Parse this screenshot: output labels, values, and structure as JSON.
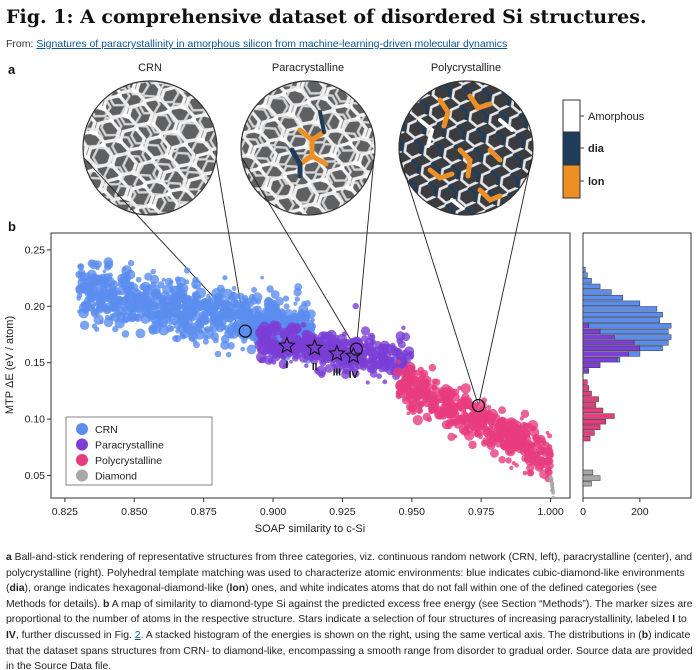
{
  "figure": {
    "title": "Fig. 1: A comprehensive dataset of disordered Si structures.",
    "from_prefix": "From: ",
    "source_link": "Signatures of paracrystallinity in amorphous silicon from machine-learning-driven molecular dynamics",
    "panel_a": "a",
    "panel_b": "b"
  },
  "structures": {
    "crn_label": "CRN",
    "para_label": "Paracrystalline",
    "poly_label": "Polycrystalline"
  },
  "colorbar": {
    "items": [
      {
        "label": "Amorphous",
        "color": "#ffffff"
      },
      {
        "label": "dia",
        "color": "#1f3c5a"
      },
      {
        "label": "lon",
        "color": "#ee8f25"
      }
    ]
  },
  "chart_data": {
    "type": "scatter",
    "xlabel": "SOAP similarity to c-Si",
    "ylabel": "MTP ΔE (eV / atom)",
    "xlim": [
      0.82,
      1.007
    ],
    "ylim": [
      0.03,
      0.265
    ],
    "x_ticks": [
      "0.825",
      "0.850",
      "0.875",
      "0.900",
      "0.925",
      "0.950",
      "0.975",
      "1.000"
    ],
    "x_tick_values": [
      0.825,
      0.85,
      0.875,
      0.9,
      0.925,
      0.95,
      0.975,
      1.0
    ],
    "y_ticks": [
      "0.05",
      "0.10",
      "0.15",
      "0.20",
      "0.25"
    ],
    "y_tick_values": [
      0.05,
      0.1,
      0.15,
      0.2,
      0.25
    ],
    "legend": {
      "placement": "lower-left",
      "items": [
        {
          "label": "CRN",
          "color": "#5b8def"
        },
        {
          "label": "Paracrystalline",
          "color": "#7b3fd6"
        },
        {
          "label": "Polycrystalline",
          "color": "#e73c7e"
        },
        {
          "label": "Diamond",
          "color": "#a8a8a8"
        }
      ]
    },
    "series": [
      {
        "name": "CRN",
        "color": "#5b8def",
        "region": {
          "x": [
            0.83,
            0.915
          ],
          "y_center": [
            0.215,
            0.175
          ],
          "y_spread": 0.022
        }
      },
      {
        "name": "Paracrystalline",
        "color": "#7b3fd6",
        "region": {
          "x": [
            0.895,
            0.95
          ],
          "y_center": [
            0.17,
            0.15
          ],
          "y_spread": 0.015
        }
      },
      {
        "name": "Polycrystalline",
        "color": "#e73c7e",
        "region": {
          "x": [
            0.945,
            1.0
          ],
          "y_center": [
            0.135,
            0.065
          ],
          "y_spread": 0.018
        }
      },
      {
        "name": "Diamond",
        "color": "#a8a8a8",
        "region": {
          "x": [
            1.0,
            1.001
          ],
          "y_center": [
            0.048,
            0.036
          ],
          "y_spread": 0.004
        }
      }
    ],
    "stars": [
      {
        "label": "I",
        "x": 0.905,
        "y": 0.165
      },
      {
        "label": "II",
        "x": 0.915,
        "y": 0.163
      },
      {
        "label": "III",
        "x": 0.923,
        "y": 0.158
      },
      {
        "label": "IV",
        "x": 0.929,
        "y": 0.156
      }
    ],
    "zoom_points": [
      {
        "x": 0.89,
        "y": 0.178
      },
      {
        "x": 0.93,
        "y": 0.162
      },
      {
        "x": 0.974,
        "y": 0.112
      }
    ],
    "histogram": {
      "x_ticks": [
        "0",
        "200"
      ],
      "x_tick_values": [
        0,
        200
      ],
      "xlim": [
        0,
        380
      ],
      "bins_y": [
        0.04,
        0.045,
        0.05,
        0.055,
        0.06,
        0.065,
        0.07,
        0.075,
        0.08,
        0.085,
        0.09,
        0.095,
        0.1,
        0.105,
        0.11,
        0.115,
        0.12,
        0.125,
        0.13,
        0.135,
        0.14,
        0.145,
        0.15,
        0.155,
        0.16,
        0.165,
        0.17,
        0.175,
        0.18,
        0.185,
        0.19,
        0.195,
        0.2,
        0.205,
        0.21,
        0.215,
        0.22,
        0.225,
        0.23,
        0.235
      ],
      "bin_width": 0.0048,
      "stacks": [
        {
          "name": "Diamond",
          "color": "#a8a8a8",
          "counts": [
            30,
            60,
            35,
            0,
            0,
            0,
            0,
            0,
            0,
            0,
            0,
            0,
            0,
            0,
            0,
            0,
            0,
            0,
            0,
            0,
            0,
            0,
            0,
            0,
            0,
            0,
            0,
            0,
            0,
            0,
            0,
            0,
            0,
            0,
            0,
            0,
            0,
            0,
            0,
            0
          ]
        },
        {
          "name": "Polycrystalline",
          "color": "#e73c7e",
          "counts": [
            0,
            0,
            0,
            0,
            0,
            0,
            0,
            0,
            25,
            40,
            60,
            80,
            110,
            70,
            45,
            55,
            30,
            20,
            15,
            0,
            0,
            0,
            0,
            0,
            0,
            0,
            0,
            0,
            0,
            0,
            0,
            0,
            0,
            0,
            0,
            0,
            0,
            0,
            0,
            0
          ]
        },
        {
          "name": "Paracrystalline",
          "color": "#7b3fd6",
          "counts": [
            0,
            0,
            0,
            0,
            0,
            0,
            0,
            0,
            0,
            0,
            0,
            0,
            0,
            0,
            0,
            0,
            0,
            0,
            0,
            0,
            20,
            60,
            120,
            160,
            200,
            180,
            110,
            60,
            20,
            0,
            0,
            0,
            0,
            0,
            0,
            0,
            0,
            0,
            0,
            0
          ]
        },
        {
          "name": "CRN",
          "color": "#5b8def",
          "counts": [
            0,
            0,
            0,
            0,
            0,
            0,
            0,
            0,
            0,
            0,
            0,
            0,
            0,
            0,
            0,
            0,
            0,
            0,
            0,
            0,
            0,
            0,
            10,
            40,
            80,
            120,
            200,
            240,
            290,
            270,
            280,
            260,
            200,
            140,
            100,
            60,
            30,
            15,
            8,
            0
          ]
        }
      ]
    }
  },
  "caption": {
    "p1_a": "a",
    "p1_text1": " Ball-and-stick rendering of representative structures from three categories, viz. continuous random network (CRN, left), paracrystalline (center), and polycrystalline (right). Polyhedral template matching was used to characterize atomic environments: blue indicates cubic-diamond-like environments (",
    "p1_dia": "dia",
    "p1_text2": "), orange indicates hexagonal-diamond-like (",
    "p1_lon": "lon",
    "p1_text3": ") ones, and white indicates atoms that do not fall within one of the defined categories (see Methods for details). ",
    "p1_b": "b",
    "p1_text4": " A map of similarity to diamond-type Si against the predicted excess free energy (see Section “Methods”). The marker sizes are proportional to the number of atoms in the respective structure. Stars indicate a selection of four structures of increasing paracrystallinity, labeled ",
    "p1_I": "I",
    "p1_to": " to ",
    "p1_IV": "IV",
    "p1_text5": ", further discussed in Fig. ",
    "p1_fig2": "2",
    "p1_text6": ". A stacked histogram of the energies is shown on the right, using the same vertical axis. The distributions in (",
    "p1_b2": "b",
    "p1_text7": ") indicate that the dataset spans structures from CRN- to diamond-like, encompassing a smooth range from disorder to gradual order. Source data are provided in the Source Data file."
  }
}
